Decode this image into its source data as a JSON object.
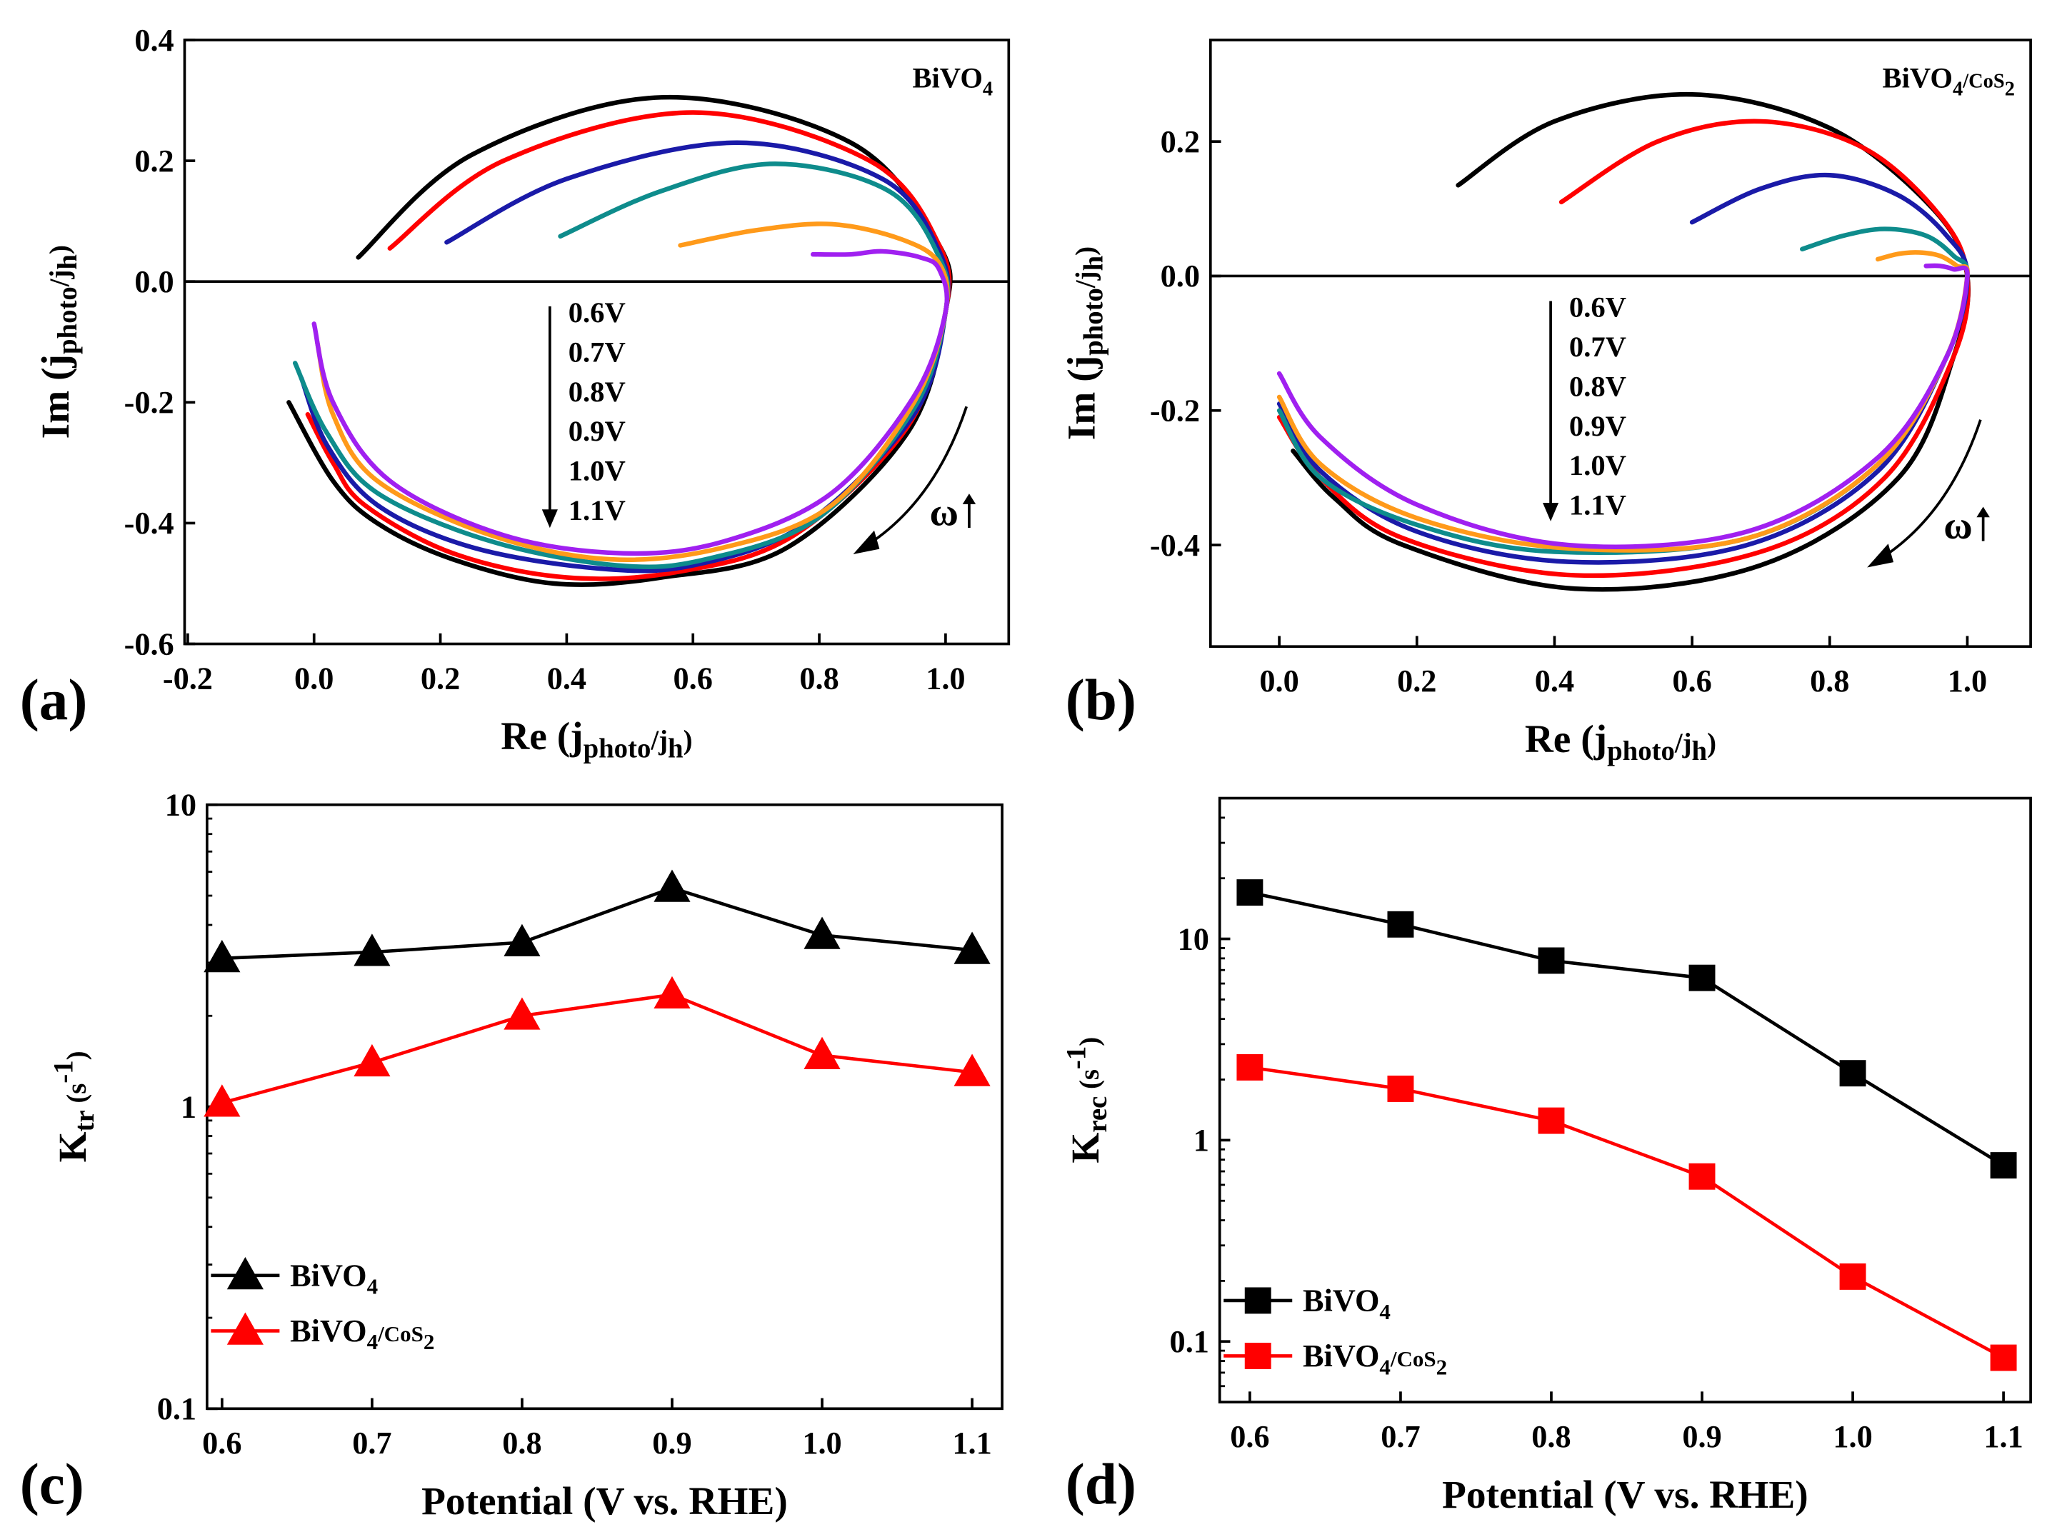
{
  "chart_data": [
    {
      "panel": "(a)",
      "type": "line",
      "title": "BiVO4",
      "xlabel": {
        "main": "Re (j",
        "sub1": "photo",
        "mid": "/j",
        "sub2": "h",
        "end": ")"
      },
      "ylabel": {
        "main": "Im (j",
        "sub1": "photo",
        "mid": "/j",
        "sub2": "h",
        "end": ")"
      },
      "title_parts": {
        "main": "BiVO",
        "sub": "4"
      },
      "xlim": [
        -0.205,
        1.1
      ],
      "ylim": [
        -0.6,
        0.4
      ],
      "xticks": [
        "-0.2",
        "0.0",
        "0.2",
        "0.4",
        "0.6",
        "0.8",
        "1.0"
      ],
      "yticks": [
        "-0.6",
        "-0.4",
        "-0.2",
        "0.0",
        "0.2",
        "0.4"
      ],
      "potentials": [
        "0.6V",
        "0.7V",
        "0.8V",
        "0.9V",
        "1.0V",
        "1.1V"
      ],
      "omega_label": "ω",
      "series": [
        {
          "name": "0.6V",
          "color": "#000000",
          "points": [
            [
              0.07,
              0.04
            ],
            [
              0.25,
              0.21
            ],
            [
              0.55,
              0.305
            ],
            [
              0.85,
              0.23
            ],
            [
              0.99,
              0.06
            ],
            [
              1.0,
              -0.05
            ],
            [
              0.94,
              -0.25
            ],
            [
              0.75,
              -0.44
            ],
            [
              0.55,
              -0.49
            ],
            [
              0.38,
              -0.5
            ],
            [
              0.22,
              -0.46
            ],
            [
              0.1,
              -0.4
            ],
            [
              0.03,
              -0.33
            ],
            [
              -0.04,
              -0.2
            ]
          ]
        },
        {
          "name": "0.7V",
          "color": "#ff0000",
          "points": [
            [
              0.12,
              0.055
            ],
            [
              0.3,
              0.2
            ],
            [
              0.6,
              0.28
            ],
            [
              0.88,
              0.2
            ],
            [
              0.99,
              0.06
            ],
            [
              1.0,
              -0.05
            ],
            [
              0.94,
              -0.24
            ],
            [
              0.76,
              -0.42
            ],
            [
              0.58,
              -0.48
            ],
            [
              0.4,
              -0.49
            ],
            [
              0.22,
              -0.45
            ],
            [
              0.08,
              -0.37
            ],
            [
              0.03,
              -0.3
            ],
            [
              -0.01,
              -0.22
            ]
          ]
        },
        {
          "name": "0.8V",
          "color": "#1a1aa8",
          "points": [
            [
              0.21,
              0.065
            ],
            [
              0.4,
              0.17
            ],
            [
              0.67,
              0.23
            ],
            [
              0.9,
              0.17
            ],
            [
              0.99,
              0.05
            ],
            [
              1.0,
              -0.05
            ],
            [
              0.95,
              -0.22
            ],
            [
              0.78,
              -0.4
            ],
            [
              0.6,
              -0.47
            ],
            [
              0.45,
              -0.475
            ],
            [
              0.25,
              -0.44
            ],
            [
              0.1,
              -0.37
            ],
            [
              0.02,
              -0.27
            ],
            [
              -0.02,
              -0.16
            ]
          ]
        },
        {
          "name": "0.9V",
          "color": "#0e8c8c",
          "points": [
            [
              0.39,
              0.075
            ],
            [
              0.55,
              0.15
            ],
            [
              0.73,
              0.195
            ],
            [
              0.91,
              0.15
            ],
            [
              0.99,
              0.04
            ],
            [
              1.0,
              -0.05
            ],
            [
              0.95,
              -0.21
            ],
            [
              0.8,
              -0.39
            ],
            [
              0.62,
              -0.46
            ],
            [
              0.48,
              -0.47
            ],
            [
              0.28,
              -0.43
            ],
            [
              0.1,
              -0.35
            ],
            [
              0.02,
              -0.25
            ],
            [
              -0.03,
              -0.135
            ]
          ]
        },
        {
          "name": "1.0V",
          "color": "#ff9a1a",
          "points": [
            [
              0.58,
              0.06
            ],
            [
              0.7,
              0.085
            ],
            [
              0.82,
              0.095
            ],
            [
              0.93,
              0.07
            ],
            [
              0.99,
              0.03
            ],
            [
              1.0,
              -0.05
            ],
            [
              0.95,
              -0.2
            ],
            [
              0.82,
              -0.37
            ],
            [
              0.65,
              -0.44
            ],
            [
              0.47,
              -0.46
            ],
            [
              0.28,
              -0.42
            ],
            [
              0.1,
              -0.33
            ],
            [
              0.03,
              -0.22
            ],
            [
              0.005,
              -0.1
            ]
          ]
        },
        {
          "name": "1.1V",
          "color": "#a020f0",
          "points": [
            [
              0.79,
              0.045
            ],
            [
              0.85,
              0.045
            ],
            [
              0.9,
              0.05
            ],
            [
              0.96,
              0.04
            ],
            [
              0.99,
              0.02
            ],
            [
              1.0,
              -0.05
            ],
            [
              0.95,
              -0.19
            ],
            [
              0.82,
              -0.35
            ],
            [
              0.65,
              -0.43
            ],
            [
              0.49,
              -0.45
            ],
            [
              0.3,
              -0.42
            ],
            [
              0.12,
              -0.33
            ],
            [
              0.03,
              -0.2
            ],
            [
              0.0,
              -0.07
            ]
          ]
        }
      ]
    },
    {
      "panel": "(b)",
      "type": "line",
      "title": "BiVO4/CoS2",
      "xlabel": {
        "main": "Re (j",
        "sub1": "photo",
        "mid": "/j",
        "sub2": "h",
        "end": ")"
      },
      "ylabel": {
        "main": "Im (j",
        "sub1": "photo",
        "mid": "/j",
        "sub2": "h",
        "end": ")"
      },
      "title_parts": {
        "main": "BiVO",
        "sub": "4",
        "main2": "/CoS",
        "sub2": "2"
      },
      "xlim": [
        -0.1,
        1.092
      ],
      "ylim": [
        -0.551,
        0.351
      ],
      "xticks": [
        "0.0",
        "0.2",
        "0.4",
        "0.6",
        "0.8",
        "1.0"
      ],
      "yticks": [
        "-0.4",
        "-0.2",
        "0.0",
        "0.2"
      ],
      "potentials": [
        "0.6V",
        "0.7V",
        "0.8V",
        "0.9V",
        "1.0V",
        "1.1V"
      ],
      "omega_label": "ω",
      "series": [
        {
          "name": "0.6V",
          "color": "#000000",
          "points": [
            [
              0.26,
              0.135
            ],
            [
              0.4,
              0.23
            ],
            [
              0.6,
              0.27
            ],
            [
              0.8,
              0.22
            ],
            [
              0.95,
              0.1
            ],
            [
              1.0,
              0.0
            ],
            [
              0.98,
              -0.12
            ],
            [
              0.9,
              -0.3
            ],
            [
              0.7,
              -0.43
            ],
            [
              0.43,
              -0.465
            ],
            [
              0.18,
              -0.4
            ],
            [
              0.08,
              -0.33
            ],
            [
              0.02,
              -0.26
            ]
          ]
        },
        {
          "name": "0.7V",
          "color": "#ff0000",
          "points": [
            [
              0.41,
              0.11
            ],
            [
              0.55,
              0.2
            ],
            [
              0.7,
              0.23
            ],
            [
              0.85,
              0.19
            ],
            [
              0.96,
              0.09
            ],
            [
              1.0,
              0.0
            ],
            [
              0.98,
              -0.12
            ],
            [
              0.88,
              -0.3
            ],
            [
              0.7,
              -0.41
            ],
            [
              0.43,
              -0.445
            ],
            [
              0.18,
              -0.39
            ],
            [
              0.06,
              -0.3
            ],
            [
              0.0,
              -0.21
            ]
          ]
        },
        {
          "name": "0.8V",
          "color": "#1a1aa8",
          "points": [
            [
              0.6,
              0.08
            ],
            [
              0.7,
              0.13
            ],
            [
              0.8,
              0.15
            ],
            [
              0.9,
              0.12
            ],
            [
              0.97,
              0.06
            ],
            [
              1.0,
              0.0
            ],
            [
              0.97,
              -0.12
            ],
            [
              0.87,
              -0.29
            ],
            [
              0.68,
              -0.4
            ],
            [
              0.42,
              -0.425
            ],
            [
              0.2,
              -0.38
            ],
            [
              0.06,
              -0.29
            ],
            [
              0.0,
              -0.19
            ]
          ]
        },
        {
          "name": "0.9V",
          "color": "#0e8c8c",
          "points": [
            [
              0.76,
              0.04
            ],
            [
              0.82,
              0.06
            ],
            [
              0.88,
              0.07
            ],
            [
              0.94,
              0.06
            ],
            [
              0.98,
              0.03
            ],
            [
              1.0,
              0.0
            ],
            [
              0.97,
              -0.12
            ],
            [
              0.87,
              -0.28
            ],
            [
              0.68,
              -0.39
            ],
            [
              0.4,
              -0.41
            ],
            [
              0.2,
              -0.37
            ],
            [
              0.06,
              -0.3
            ],
            [
              0.0,
              -0.2
            ]
          ]
        },
        {
          "name": "1.0V",
          "color": "#ff9a1a",
          "points": [
            [
              0.87,
              0.025
            ],
            [
              0.9,
              0.033
            ],
            [
              0.93,
              0.035
            ],
            [
              0.96,
              0.03
            ],
            [
              0.985,
              0.015
            ],
            [
              1.0,
              0.0
            ],
            [
              0.97,
              -0.12
            ],
            [
              0.87,
              -0.28
            ],
            [
              0.68,
              -0.39
            ],
            [
              0.42,
              -0.405
            ],
            [
              0.2,
              -0.36
            ],
            [
              0.06,
              -0.28
            ],
            [
              0.0,
              -0.18
            ]
          ]
        },
        {
          "name": "1.1V",
          "color": "#a020f0",
          "points": [
            [
              0.94,
              0.015
            ],
            [
              0.96,
              0.015
            ],
            [
              0.98,
              0.01
            ],
            [
              1.0,
              0.0
            ],
            [
              0.97,
              -0.12
            ],
            [
              0.87,
              -0.27
            ],
            [
              0.68,
              -0.38
            ],
            [
              0.42,
              -0.4
            ],
            [
              0.2,
              -0.34
            ],
            [
              0.06,
              -0.24
            ],
            [
              0.0,
              -0.145
            ]
          ]
        }
      ]
    },
    {
      "panel": "(c)",
      "type": "line",
      "yscale": "log",
      "xlabel": "Potential (V vs. RHE)",
      "ylabel": {
        "main": "K",
        "sub": "tr",
        "unit": " (s",
        "sup": "-1",
        "end": ")"
      },
      "xlim": [
        0.59,
        1.12
      ],
      "ylim": [
        0.1,
        10
      ],
      "xticks": [
        "0.6",
        "0.7",
        "0.8",
        "0.9",
        "1.0",
        "1.1"
      ],
      "yticks": [
        "0.1",
        "1",
        "10"
      ],
      "x": [
        0.6,
        0.7,
        0.8,
        0.9,
        1.0,
        1.1
      ],
      "marker": "triangle",
      "series": [
        {
          "name": "BiVO4",
          "legend": {
            "main": "BiVO",
            "sub": "4"
          },
          "color": "#000000",
          "values": [
            3.1,
            3.25,
            3.5,
            5.3,
            3.7,
            3.3
          ]
        },
        {
          "name": "BiVO4/CoS2",
          "legend": {
            "main": "BiVO",
            "sub": "4",
            "main2": "/CoS",
            "sub2": "2"
          },
          "color": "#ff0000",
          "values": [
            1.03,
            1.4,
            2.0,
            2.35,
            1.48,
            1.3
          ]
        }
      ],
      "legend_position": "bottom-left"
    },
    {
      "panel": "(d)",
      "type": "line",
      "yscale": "log",
      "xlabel": "Potential (V vs. RHE)",
      "ylabel": {
        "main": "K",
        "sub": "rec",
        "unit": " (s",
        "sup": "-1",
        "end": ")"
      },
      "xlim": [
        0.58,
        1.118
      ],
      "ylim": [
        0.05,
        50
      ],
      "xticks": [
        "0.6",
        "0.7",
        "0.8",
        "0.9",
        "1.0",
        "1.1"
      ],
      "yticks": [
        "0.1",
        "1",
        "10"
      ],
      "x": [
        0.6,
        0.7,
        0.8,
        0.9,
        1.0,
        1.1
      ],
      "marker": "square",
      "series": [
        {
          "name": "BiVO4",
          "legend": {
            "main": "BiVO",
            "sub": "4"
          },
          "color": "#000000",
          "values": [
            17,
            11.8,
            7.8,
            6.4,
            2.15,
            0.75
          ]
        },
        {
          "name": "BiVO4/CoS2",
          "legend": {
            "main": "BiVO",
            "sub": "4",
            "main2": "/CoS",
            "sub2": "2"
          },
          "color": "#ff0000",
          "values": [
            2.3,
            1.8,
            1.25,
            0.66,
            0.21,
            0.083
          ]
        }
      ],
      "legend_position": "bottom-left"
    }
  ]
}
